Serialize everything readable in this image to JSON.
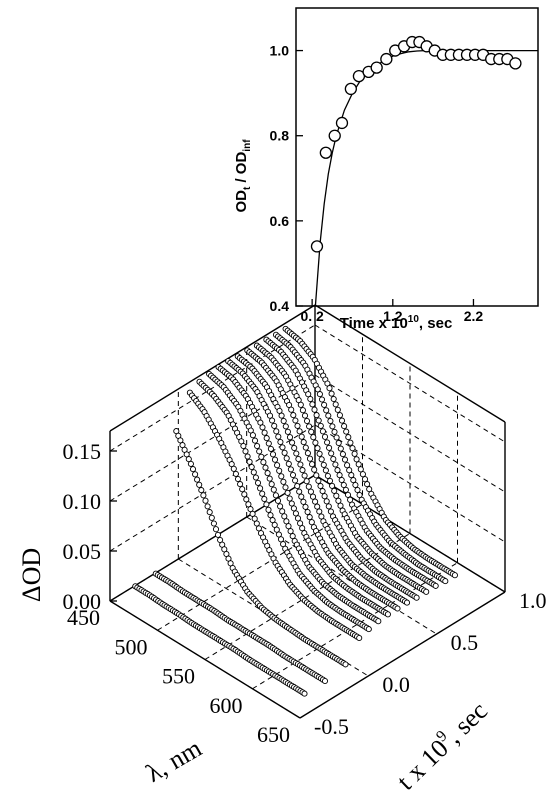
{
  "chart_data": [
    {
      "type": "scatter",
      "title": "",
      "xlabel_parts": {
        "pre": "Time x 10",
        "sup": "10",
        "post": ", sec"
      },
      "ylabel_parts": {
        "a": "OD",
        "a_sub": "t",
        "sep": " / ",
        "b": "OD",
        "b_sub": "inf"
      },
      "xlim": [
        0.0,
        3.0
      ],
      "ylim": [
        0.4,
        1.1
      ],
      "xticks": [
        0.2,
        1.2,
        2.2
      ],
      "xtick_labels": [
        "0. 2",
        "1.2",
        "2.2"
      ],
      "yticks": [
        0.4,
        0.6,
        0.8,
        1.0
      ],
      "ytick_labels": [
        "0.4",
        "0.6",
        "0.8",
        "1.0"
      ],
      "grid": false,
      "series": [
        {
          "role": "measured",
          "marker": "open-circle",
          "x": [
            0.26,
            0.37,
            0.48,
            0.57,
            0.68,
            0.78,
            0.9,
            1.0,
            1.12,
            1.23,
            1.34,
            1.44,
            1.53,
            1.62,
            1.72,
            1.82,
            1.92,
            2.02,
            2.12,
            2.22,
            2.32,
            2.42,
            2.52,
            2.62,
            2.72
          ],
          "y": [
            0.54,
            0.76,
            0.8,
            0.83,
            0.91,
            0.94,
            0.95,
            0.96,
            0.98,
            1.0,
            1.01,
            1.02,
            1.02,
            1.01,
            1.0,
            0.99,
            0.99,
            0.99,
            0.99,
            0.99,
            0.99,
            0.98,
            0.98,
            0.98,
            0.97
          ]
        },
        {
          "role": "fit",
          "type": "line",
          "x": [
            0.24,
            0.3,
            0.35,
            0.4,
            0.45,
            0.5,
            0.6,
            0.7,
            0.8,
            0.9,
            1.0,
            1.1,
            1.2,
            1.3,
            1.4,
            1.5,
            1.6,
            1.7,
            1.8,
            1.9,
            2.0,
            2.2,
            2.4,
            2.6,
            2.8,
            3.0
          ],
          "y": [
            0.4,
            0.55,
            0.64,
            0.71,
            0.76,
            0.8,
            0.86,
            0.9,
            0.93,
            0.95,
            0.965,
            0.978,
            0.987,
            0.993,
            0.997,
            0.999,
            1.0,
            1.0,
            1.0,
            1.0,
            1.0,
            1.0,
            1.0,
            1.0,
            1.0,
            1.0
          ]
        }
      ]
    },
    {
      "type": "scatter",
      "projection": "3d",
      "title": "",
      "zlabel": "ΔOD",
      "xlabel": "λ, nm",
      "ylabel_parts": {
        "pre": "t x 10",
        "sup": "9",
        "post": ", sec"
      },
      "xlim": [
        450,
        650
      ],
      "ylim": [
        -0.5,
        1.0
      ],
      "zlim": [
        0.0,
        0.17
      ],
      "xticks": [
        450,
        500,
        550,
        600,
        650
      ],
      "xtick_labels": [
        "450",
        "500",
        "550",
        "600",
        "650"
      ],
      "yticks": [
        -0.5,
        0.0,
        0.5,
        1.0
      ],
      "ytick_labels": [
        "-0.5",
        "0.0",
        "0.5",
        "1.0"
      ],
      "zticks": [
        0.0,
        0.05,
        0.1,
        0.15
      ],
      "ztick_labels": [
        "0.00",
        "0.05",
        "0.10",
        "0.15"
      ],
      "grid": true,
      "marker": "open-circle",
      "spectrum_wavelengths": [
        455,
        470,
        485,
        500,
        515,
        530,
        545,
        560,
        575,
        590,
        605,
        620,
        635
      ],
      "traces": [
        {
          "t": -0.35,
          "od": [
            0.005,
            0.005,
            0.004,
            0.004,
            0.003,
            0.003,
            0.003,
            0.003,
            0.002,
            0.002,
            0.002,
            0.002,
            0.002
          ]
        },
        {
          "t": -0.2,
          "od": [
            0.005,
            0.005,
            0.004,
            0.004,
            0.004,
            0.003,
            0.003,
            0.003,
            0.003,
            0.002,
            0.002,
            0.002,
            0.002
          ]
        },
        {
          "t": -0.05,
          "od": [
            0.135,
            0.112,
            0.085,
            0.055,
            0.032,
            0.018,
            0.011,
            0.008,
            0.007,
            0.006,
            0.006,
            0.006,
            0.006
          ]
        },
        {
          "t": 0.05,
          "od": [
            0.165,
            0.155,
            0.138,
            0.118,
            0.092,
            0.068,
            0.048,
            0.035,
            0.028,
            0.025,
            0.024,
            0.024,
            0.024
          ]
        },
        {
          "t": 0.12,
          "od": [
            0.17,
            0.165,
            0.155,
            0.135,
            0.108,
            0.08,
            0.056,
            0.04,
            0.032,
            0.028,
            0.027,
            0.027,
            0.027
          ]
        },
        {
          "t": 0.19,
          "od": [
            0.172,
            0.168,
            0.158,
            0.14,
            0.112,
            0.083,
            0.058,
            0.041,
            0.033,
            0.03,
            0.029,
            0.029,
            0.029
          ]
        },
        {
          "t": 0.26,
          "od": [
            0.173,
            0.17,
            0.16,
            0.142,
            0.114,
            0.085,
            0.06,
            0.043,
            0.034,
            0.031,
            0.03,
            0.03,
            0.03
          ]
        },
        {
          "t": 0.33,
          "od": [
            0.173,
            0.17,
            0.161,
            0.143,
            0.115,
            0.086,
            0.06,
            0.043,
            0.035,
            0.031,
            0.03,
            0.03,
            0.03
          ]
        },
        {
          "t": 0.4,
          "od": [
            0.172,
            0.169,
            0.16,
            0.142,
            0.114,
            0.085,
            0.06,
            0.043,
            0.034,
            0.031,
            0.03,
            0.03,
            0.03
          ]
        },
        {
          "t": 0.47,
          "od": [
            0.172,
            0.169,
            0.16,
            0.142,
            0.114,
            0.085,
            0.059,
            0.043,
            0.034,
            0.03,
            0.029,
            0.029,
            0.029
          ]
        },
        {
          "t": 0.54,
          "od": [
            0.171,
            0.168,
            0.159,
            0.141,
            0.113,
            0.084,
            0.059,
            0.042,
            0.034,
            0.03,
            0.029,
            0.029,
            0.029
          ]
        },
        {
          "t": 0.61,
          "od": [
            0.171,
            0.168,
            0.159,
            0.141,
            0.113,
            0.084,
            0.059,
            0.042,
            0.033,
            0.03,
            0.029,
            0.029,
            0.029
          ]
        },
        {
          "t": 0.68,
          "od": [
            0.17,
            0.167,
            0.158,
            0.14,
            0.112,
            0.083,
            0.058,
            0.042,
            0.033,
            0.03,
            0.028,
            0.028,
            0.028
          ]
        },
        {
          "t": 0.75,
          "od": [
            0.17,
            0.167,
            0.158,
            0.14,
            0.112,
            0.083,
            0.058,
            0.041,
            0.033,
            0.029,
            0.028,
            0.028,
            0.028
          ]
        }
      ]
    }
  ]
}
